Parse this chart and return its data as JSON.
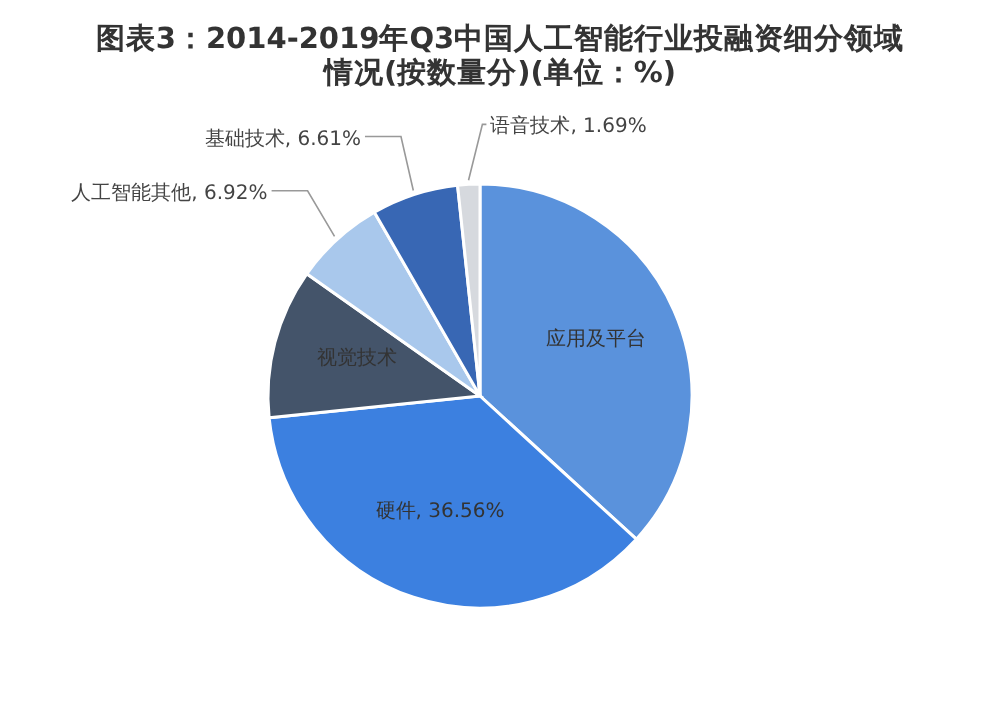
{
  "chart_data": {
    "type": "pie",
    "title": "图表3：2014-2019年Q3中国人工智能行业投融资细分领域情况(按数量分)(单位：%)",
    "categories": [
      "应用及平台",
      "硬件",
      "视觉技术",
      "人工智能其他",
      "基础技术",
      "语音技术"
    ],
    "values": [
      36.8,
      36.56,
      11.42,
      6.92,
      6.61,
      1.69
    ],
    "value_labels": [
      null,
      "36.56%",
      null,
      "6.92%",
      "6.61%",
      "1.69%"
    ],
    "colors": [
      "#5a92dc",
      "#3c80e0",
      "#44546a",
      "#a9c8ec",
      "#3867b4",
      "#d6d9de"
    ]
  }
}
